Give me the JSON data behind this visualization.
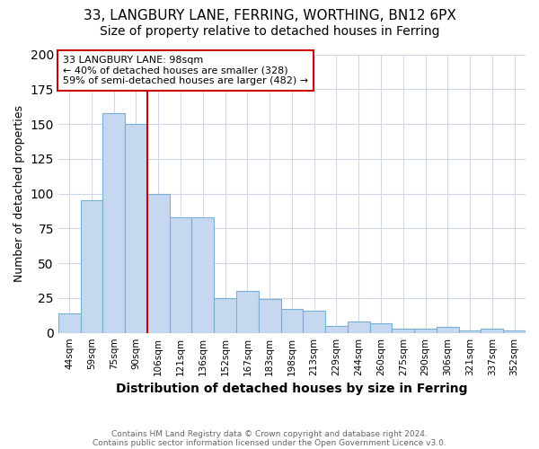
{
  "title1": "33, LANGBURY LANE, FERRING, WORTHING, BN12 6PX",
  "title2": "Size of property relative to detached houses in Ferring",
  "xlabel": "Distribution of detached houses by size in Ferring",
  "ylabel": "Number of detached properties",
  "categories": [
    "44sqm",
    "59sqm",
    "75sqm",
    "90sqm",
    "106sqm",
    "121sqm",
    "136sqm",
    "152sqm",
    "167sqm",
    "183sqm",
    "198sqm",
    "213sqm",
    "229sqm",
    "244sqm",
    "260sqm",
    "275sqm",
    "290sqm",
    "306sqm",
    "321sqm",
    "337sqm",
    "352sqm"
  ],
  "values": [
    14,
    95,
    158,
    150,
    100,
    83,
    83,
    25,
    30,
    24,
    17,
    16,
    5,
    8,
    7,
    3,
    3,
    4,
    2,
    3,
    2
  ],
  "bar_color": "#c5d8f0",
  "bar_edge_color": "#7aafd4",
  "vline_index": 4,
  "vline_color": "#cc0000",
  "annotation_text_line1": "33 LANGBURY LANE: 98sqm",
  "annotation_text_line2": "← 40% of detached houses are smaller (328)",
  "annotation_text_line3": "59% of semi-detached houses are larger (482) →",
  "annotation_box_color": "#cc0000",
  "footer1": "Contains HM Land Registry data © Crown copyright and database right 2024.",
  "footer2": "Contains public sector information licensed under the Open Government Licence v3.0.",
  "ylim": [
    0,
    200
  ],
  "background_color": "#ffffff",
  "grid_color": "#d0d8e8",
  "title1_fontsize": 11,
  "title2_fontsize": 10
}
